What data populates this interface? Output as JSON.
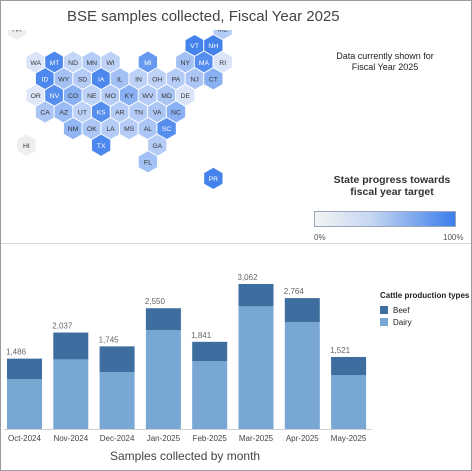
{
  "title": "BSE samples collected, Fiscal Year 2025",
  "map_note": "Data currently shown for Fiscal Year 2025",
  "progress_legend": {
    "title": "State progress towards fiscal year target",
    "min_label": "0%",
    "max_label": "100%",
    "color_low": "#f3f3f3",
    "color_high": "#3b7deb"
  },
  "colors": {
    "beef": "#3e6da0",
    "dairy": "#77a7d2",
    "tile_border": "#ffffff"
  },
  "chart_data": [
    {
      "type": "hex-tile-map",
      "value_meaning": "State progress towards fiscal year target (0-1)",
      "tiles": [
        {
          "state": "AK",
          "row": 0,
          "col": 0,
          "value": 0.0
        },
        {
          "state": "ME",
          "row": 0,
          "col": 11,
          "value": 0.3
        },
        {
          "state": "VT",
          "row": 1,
          "col": 9,
          "value": 0.95
        },
        {
          "state": "NH",
          "row": 1,
          "col": 10,
          "value": 0.95
        },
        {
          "state": "WA",
          "row": 2,
          "col": 1,
          "value": 0.08
        },
        {
          "state": "MT",
          "row": 2,
          "col": 2,
          "value": 0.9
        },
        {
          "state": "ND",
          "row": 2,
          "col": 3,
          "value": 0.2
        },
        {
          "state": "MN",
          "row": 2,
          "col": 4,
          "value": 0.3
        },
        {
          "state": "WI",
          "row": 2,
          "col": 5,
          "value": 0.25
        },
        {
          "state": "MI",
          "row": 2,
          "col": 7,
          "value": 0.75
        },
        {
          "state": "NY",
          "row": 2,
          "col": 9,
          "value": 0.4
        },
        {
          "state": "MA",
          "row": 2,
          "col": 10,
          "value": 0.85
        },
        {
          "state": "RI",
          "row": 2,
          "col": 11,
          "value": 0.08
        },
        {
          "state": "ID",
          "row": 3,
          "col": 1,
          "value": 0.9
        },
        {
          "state": "WY",
          "row": 3,
          "col": 2,
          "value": 0.4
        },
        {
          "state": "SD",
          "row": 3,
          "col": 3,
          "value": 0.3
        },
        {
          "state": "IA",
          "row": 3,
          "col": 4,
          "value": 0.9
        },
        {
          "state": "IL",
          "row": 3,
          "col": 5,
          "value": 0.4
        },
        {
          "state": "IN",
          "row": 3,
          "col": 6,
          "value": 0.25
        },
        {
          "state": "OH",
          "row": 3,
          "col": 7,
          "value": 0.25
        },
        {
          "state": "PA",
          "row": 3,
          "col": 8,
          "value": 0.3
        },
        {
          "state": "NJ",
          "row": 3,
          "col": 9,
          "value": 0.35
        },
        {
          "state": "CT",
          "row": 3,
          "col": 10,
          "value": 0.55
        },
        {
          "state": "OR",
          "row": 4,
          "col": 1,
          "value": 0.05
        },
        {
          "state": "NV",
          "row": 4,
          "col": 2,
          "value": 0.85
        },
        {
          "state": "CO",
          "row": 4,
          "col": 3,
          "value": 0.55
        },
        {
          "state": "NE",
          "row": 4,
          "col": 4,
          "value": 0.25
        },
        {
          "state": "MO",
          "row": 4,
          "col": 5,
          "value": 0.3
        },
        {
          "state": "KY",
          "row": 4,
          "col": 6,
          "value": 0.55
        },
        {
          "state": "WV",
          "row": 4,
          "col": 7,
          "value": 0.3
        },
        {
          "state": "MD",
          "row": 4,
          "col": 8,
          "value": 0.35
        },
        {
          "state": "DE",
          "row": 4,
          "col": 9,
          "value": 0.08
        },
        {
          "state": "CA",
          "row": 5,
          "col": 1,
          "value": 0.35
        },
        {
          "state": "AZ",
          "row": 5,
          "col": 2,
          "value": 0.45
        },
        {
          "state": "UT",
          "row": 5,
          "col": 3,
          "value": 0.25
        },
        {
          "state": "KS",
          "row": 5,
          "col": 4,
          "value": 0.85
        },
        {
          "state": "AR",
          "row": 5,
          "col": 5,
          "value": 0.3
        },
        {
          "state": "TN",
          "row": 5,
          "col": 6,
          "value": 0.3
        },
        {
          "state": "VA",
          "row": 5,
          "col": 7,
          "value": 0.35
        },
        {
          "state": "NC",
          "row": 5,
          "col": 8,
          "value": 0.55
        },
        {
          "state": "NM",
          "row": 6,
          "col": 3,
          "value": 0.5
        },
        {
          "state": "OK",
          "row": 6,
          "col": 4,
          "value": 0.35
        },
        {
          "state": "LA",
          "row": 6,
          "col": 5,
          "value": 0.3
        },
        {
          "state": "MS",
          "row": 6,
          "col": 6,
          "value": 0.3
        },
        {
          "state": "AL",
          "row": 6,
          "col": 7,
          "value": 0.35
        },
        {
          "state": "SC",
          "row": 6,
          "col": 8,
          "value": 0.85
        },
        {
          "state": "HI",
          "row": 7,
          "col": 0,
          "value": 0.0
        },
        {
          "state": "TX",
          "row": 7,
          "col": 4,
          "value": 0.9
        },
        {
          "state": "GA",
          "row": 7,
          "col": 7,
          "value": 0.3
        },
        {
          "state": "FL",
          "row": 8,
          "col": 7,
          "value": 0.4
        },
        {
          "state": "PR",
          "row": 9,
          "col": 10,
          "value": 0.95
        }
      ]
    },
    {
      "type": "bar",
      "stacked": true,
      "title": "",
      "xlabel": "Samples collected by month",
      "ylabel": "",
      "ylim": [
        0,
        3062
      ],
      "categories": [
        "Oct-2024",
        "Nov-2024",
        "Dec-2024",
        "Jan-2025",
        "Feb-2025",
        "Mar-2025",
        "Apr-2025",
        "May-2025"
      ],
      "totals": [
        1486,
        2037,
        1745,
        2550,
        1841,
        3062,
        2764,
        1521
      ],
      "total_labels": [
        "1,486",
        "2,037",
        "1,745",
        "2,550",
        "1,841",
        "3,062",
        "2,764",
        "1,521"
      ],
      "series": [
        {
          "name": "Dairy",
          "values": [
            1050,
            1470,
            1200,
            2090,
            1430,
            2590,
            2260,
            1140
          ]
        },
        {
          "name": "Beef",
          "values": [
            436,
            567,
            545,
            460,
            411,
            472,
            504,
            381
          ]
        }
      ],
      "legend_title": "Cattle production types",
      "legend": [
        "Beef",
        "Dairy"
      ]
    }
  ]
}
